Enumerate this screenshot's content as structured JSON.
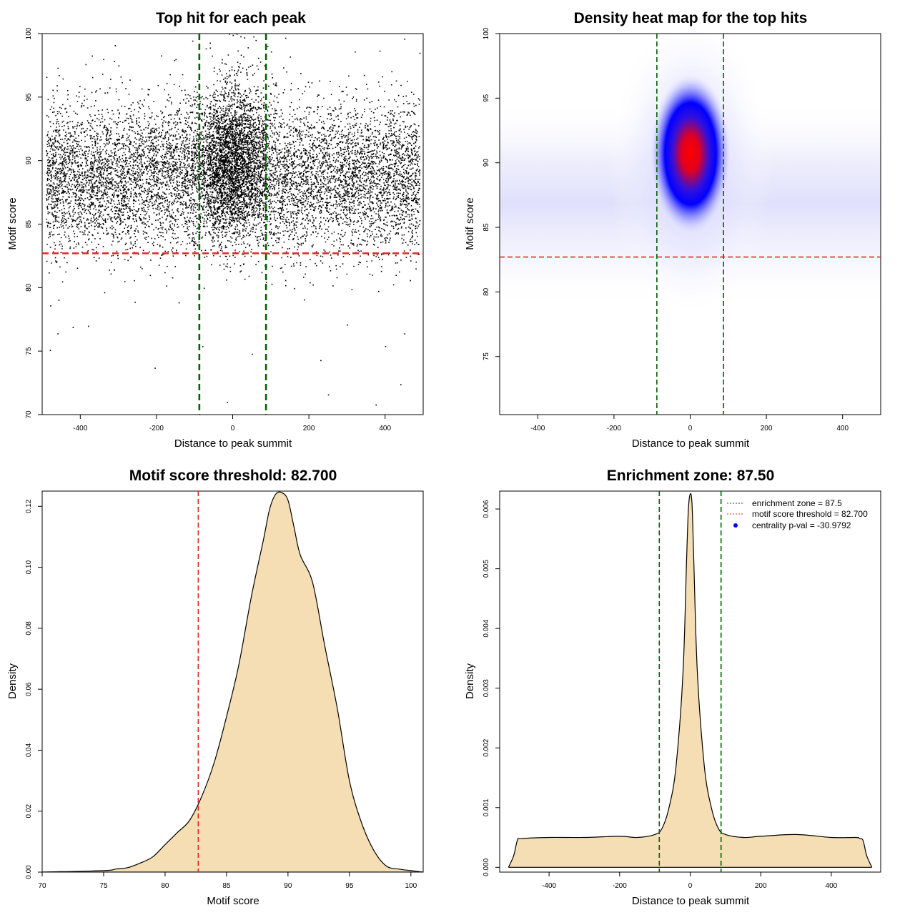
{
  "chart_data": [
    {
      "type": "scatter",
      "title": "Top hit for each peak",
      "xlabel": "Distance to peak summit",
      "ylabel": "Motif score",
      "xlim": [
        -500,
        500
      ],
      "ylim": [
        70,
        100
      ],
      "xticks": [
        -400,
        -200,
        0,
        200,
        400
      ],
      "yticks": [
        70,
        75,
        80,
        85,
        90,
        95,
        100
      ],
      "vlines": [
        -87.5,
        87.5
      ],
      "hline": 82.7,
      "colors": {
        "points": "#000000",
        "vlines": "#006400",
        "hline": "#e32626"
      },
      "sample_points": [
        [
          -480,
          75.1
        ],
        [
          -460,
          76.4
        ],
        [
          -420,
          76.9
        ],
        [
          -380,
          77.0
        ],
        [
          -205,
          73.7
        ],
        [
          -80,
          75.4
        ],
        [
          -15,
          71.0
        ],
        [
          50,
          74.8
        ],
        [
          230,
          74.3
        ],
        [
          250,
          71.6
        ],
        [
          300,
          77.1
        ],
        [
          375,
          70.8
        ],
        [
          400,
          75.4
        ],
        [
          440,
          72.4
        ],
        [
          450,
          76.4
        ],
        [
          -340,
          98.0
        ],
        [
          -300,
          97.5
        ],
        [
          -150,
          98.0
        ],
        [
          -60,
          98.9
        ],
        [
          -10,
          100.0
        ],
        [
          0,
          99.9
        ],
        [
          10,
          100.0
        ],
        [
          20,
          99.8
        ],
        [
          30,
          99.7
        ],
        [
          60,
          99.5
        ],
        [
          100,
          98.6
        ],
        [
          150,
          98.2
        ],
        [
          320,
          98.6
        ],
        [
          450,
          99.6
        ],
        [
          490,
          98.5
        ]
      ]
    },
    {
      "type": "heatmap",
      "title": "Density heat map for the top hits",
      "xlabel": "Distance to peak summit",
      "ylabel": "Motif score",
      "xlim": [
        -500,
        500
      ],
      "ylim": [
        70.5,
        100
      ],
      "xticks": [
        -400,
        -200,
        0,
        200,
        400
      ],
      "yticks": [
        75,
        80,
        85,
        90,
        95,
        100
      ],
      "vlines": [
        -87.5,
        87.5
      ],
      "hline": 82.7,
      "peak": {
        "x": 0,
        "y": 90.5
      },
      "colors": {
        "low": "#ffffff",
        "mid": "#0000ff",
        "high": "#ff0000",
        "vlines": "#006400",
        "hline": "#e32626"
      }
    },
    {
      "type": "area",
      "title": "Motif score threshold: 82.700",
      "xlabel": "Motif score",
      "ylabel": "Density",
      "xlim": [
        70,
        101
      ],
      "ylim": [
        0,
        0.125
      ],
      "xticks": [
        70,
        75,
        80,
        85,
        90,
        95,
        100
      ],
      "yticks": [
        "0.00",
        "0.02",
        "0.04",
        "0.06",
        "0.08",
        "0.10",
        "0.12"
      ],
      "vline": 82.7,
      "colors": {
        "fill": "#f5deb3",
        "line": "#000000",
        "vline": "#e32626"
      },
      "x": [
        70,
        75,
        76,
        77,
        78,
        79,
        80,
        81,
        82,
        83,
        84,
        85,
        86,
        87,
        88,
        88.5,
        89,
        89.5,
        90,
        90.5,
        91,
        92,
        93,
        94,
        95,
        96,
        97,
        98,
        99,
        100,
        101
      ],
      "y": [
        0,
        0.0005,
        0.001,
        0.0015,
        0.003,
        0.005,
        0.009,
        0.013,
        0.017,
        0.025,
        0.036,
        0.051,
        0.068,
        0.09,
        0.109,
        0.119,
        0.124,
        0.1245,
        0.122,
        0.113,
        0.104,
        0.095,
        0.074,
        0.054,
        0.03,
        0.016,
        0.007,
        0.002,
        0.001,
        0.0005,
        0
      ]
    },
    {
      "type": "area",
      "title": "Enrichment zone: 87.50",
      "xlabel": "Distance to peak summit",
      "ylabel": "Density",
      "xlim": [
        -540,
        540
      ],
      "ylim": [
        -8e-05,
        0.0063
      ],
      "xticks": [
        -400,
        -200,
        0,
        200,
        400
      ],
      "yticks": [
        "0.000",
        "0.001",
        "0.002",
        "0.003",
        "0.004",
        "0.005",
        "0.006"
      ],
      "vlines": [
        -87.5,
        87.5
      ],
      "colors": {
        "fill": "#f5deb3",
        "line": "#000000",
        "vlines": "#006400",
        "legend_point": "#0000ff"
      },
      "legend": [
        "enrichment zone = 87.5",
        "motif score threshold = 82.700",
        "centrality p-val = -30.9792"
      ],
      "x": [
        -515,
        -500,
        -490,
        -480,
        -400,
        -300,
        -200,
        -150,
        -100,
        -80,
        -60,
        -40,
        -20,
        -10,
        -5,
        0,
        5,
        10,
        20,
        40,
        60,
        80,
        100,
        150,
        200,
        300,
        400,
        470,
        480,
        490,
        500,
        515
      ],
      "y": [
        0,
        0.0002,
        0.00045,
        0.00048,
        0.0005,
        0.0005,
        0.00052,
        0.0005,
        0.00055,
        0.00065,
        0.001,
        0.0017,
        0.0033,
        0.0052,
        0.006,
        0.00625,
        0.0061,
        0.0052,
        0.0033,
        0.0017,
        0.001,
        0.00065,
        0.00055,
        0.0005,
        0.00052,
        0.00055,
        0.0005,
        0.0005,
        0.00048,
        0.00045,
        0.0002,
        0
      ]
    }
  ]
}
